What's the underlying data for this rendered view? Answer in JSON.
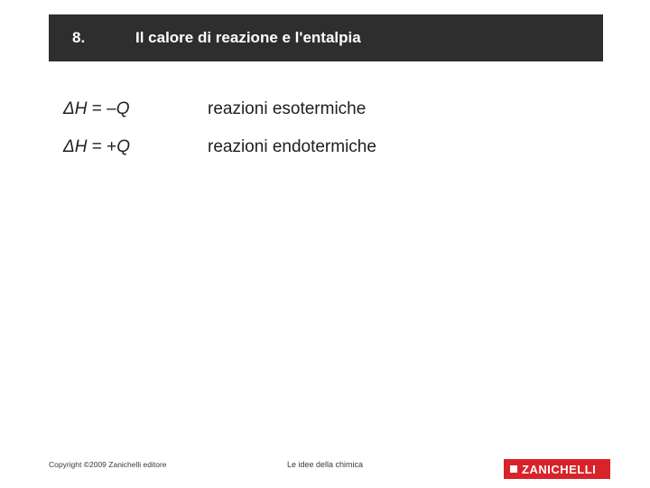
{
  "header": {
    "number": "8.",
    "title": "Il calore di reazione e l'entalpia",
    "bg_color": "#2e2e2e",
    "text_color": "#ffffff",
    "font_size": 17
  },
  "rows": [
    {
      "delta": "ΔH",
      "eq": " = ",
      "sign": "–",
      "var": "Q",
      "desc": "reazioni esotermiche"
    },
    {
      "delta": "ΔH",
      "eq": " = ",
      "sign": "+",
      "var": "Q",
      "desc": "reazioni endotermiche"
    }
  ],
  "footer": {
    "copyright": "Copyright ©2009 Zanichelli editore",
    "caption": "Le idee della chimica",
    "logo_text": "ZANICHELLI",
    "logo_bg": "#d8232a",
    "logo_fg": "#ffffff"
  },
  "content_style": {
    "font_size": 19,
    "text_color": "#202020"
  }
}
